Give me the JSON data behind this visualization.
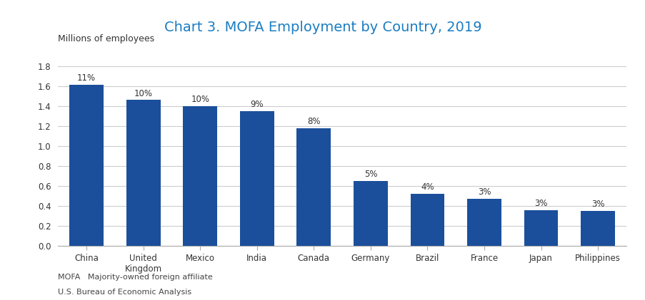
{
  "title": "Chart 3. MOFA Employment by Country, 2019",
  "ylabel": "Millions of employees",
  "categories": [
    "China",
    "United\nKingdom",
    "Mexico",
    "India",
    "Canada",
    "Germany",
    "Brazil",
    "France",
    "Japan",
    "Philippines"
  ],
  "values": [
    1.61,
    1.46,
    1.4,
    1.35,
    1.18,
    0.65,
    0.52,
    0.47,
    0.36,
    0.35
  ],
  "percentages": [
    "11%",
    "10%",
    "10%",
    "9%",
    "8%",
    "5%",
    "4%",
    "3%",
    "3%",
    "3%"
  ],
  "bar_color": "#1B4F9B",
  "title_color": "#1B7DC2",
  "ylim": [
    0,
    1.8
  ],
  "yticks": [
    0.0,
    0.2,
    0.4,
    0.6,
    0.8,
    1.0,
    1.2,
    1.4,
    1.6,
    1.8
  ],
  "footnote_line1": "MOFA   Majority-owned foreign affiliate",
  "footnote_line2": "U.S. Bureau of Economic Analysis",
  "background_color": "#ffffff",
  "grid_color": "#cccccc",
  "title_fontsize": 14,
  "label_fontsize": 8.5,
  "ylabel_fontsize": 9,
  "tick_fontsize": 8.5,
  "footnote_fontsize": 8
}
